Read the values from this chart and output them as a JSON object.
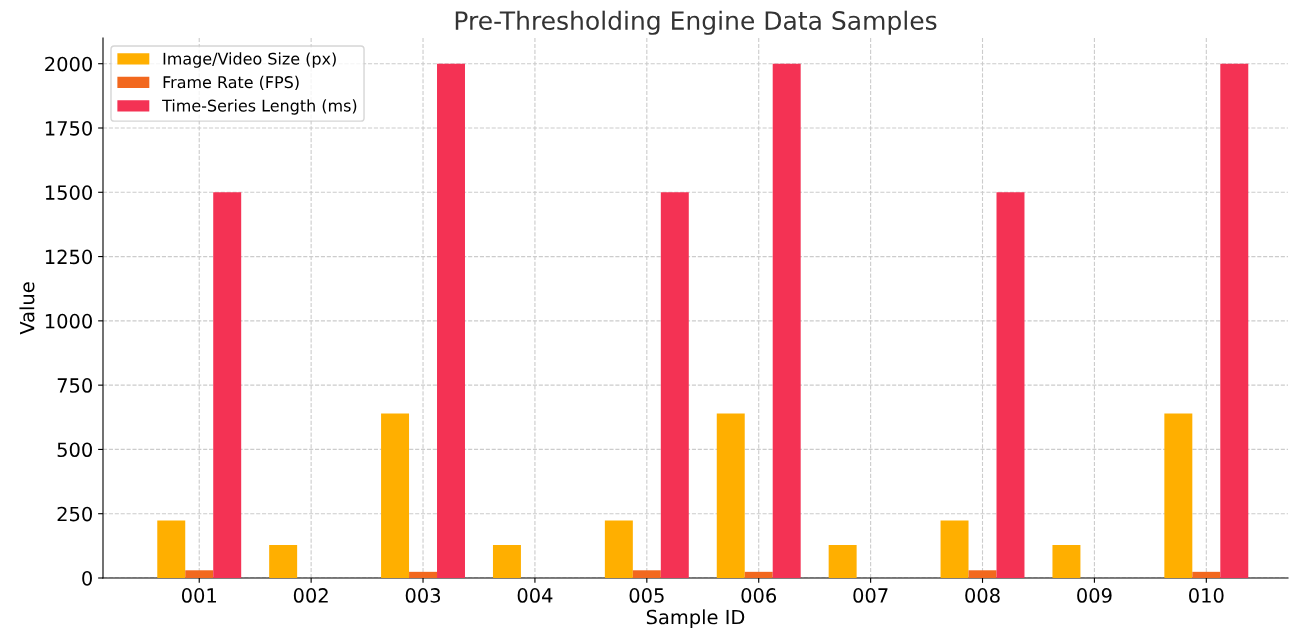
{
  "chart_data": {
    "type": "bar",
    "title": "Pre-Thresholding Engine Data Samples",
    "xlabel": "Sample ID",
    "ylabel": "Value",
    "categories": [
      "001",
      "002",
      "003",
      "004",
      "005",
      "006",
      "007",
      "008",
      "009",
      "010"
    ],
    "series": [
      {
        "name": "Image/Video Size (px)",
        "color": "#ffaf00",
        "values": [
          224,
          128,
          640,
          128,
          224,
          640,
          128,
          224,
          128,
          640
        ]
      },
      {
        "name": "Frame Rate (FPS)",
        "color": "#f2681e",
        "values": [
          30,
          null,
          24,
          null,
          30,
          24,
          null,
          30,
          null,
          24
        ]
      },
      {
        "name": "Time-Series Length (ms)",
        "color": "#f43254",
        "values": [
          1500,
          null,
          2000,
          null,
          1500,
          2000,
          null,
          1500,
          null,
          2000
        ]
      }
    ],
    "ylim": [
      0,
      2100
    ],
    "yticks": [
      0,
      250,
      500,
      750,
      1000,
      1250,
      1500,
      1750,
      2000
    ],
    "grid": true,
    "legend": "top left"
  }
}
